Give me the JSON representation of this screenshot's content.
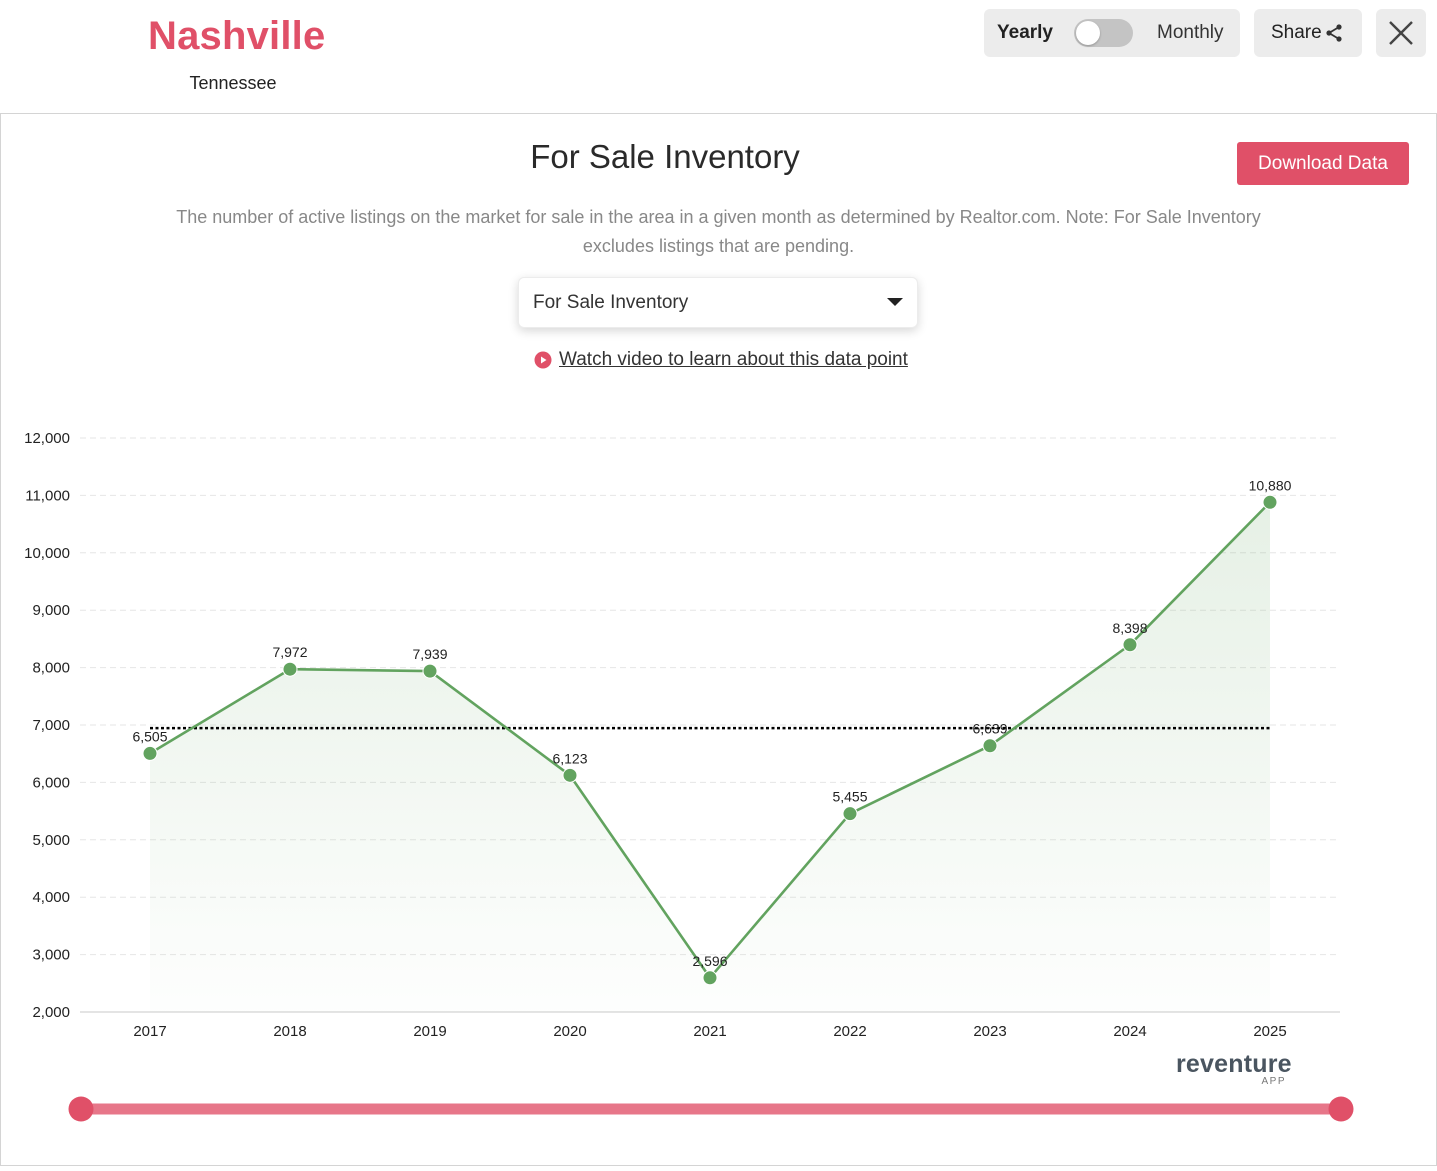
{
  "header": {
    "city": "Nashville",
    "state": "Tennessee",
    "toggle": {
      "left_label": "Yearly",
      "right_label": "Monthly",
      "selected": "Yearly"
    },
    "share_label": "Share"
  },
  "panel": {
    "title": "For Sale Inventory",
    "download_label": "Download Data",
    "description": "The number of active listings on the market for sale in the area in a given month as determined by Realtor.com. Note: For Sale Inventory excludes listings that are pending.",
    "metric_select": {
      "selected": "For Sale Inventory"
    },
    "video_link": "Watch video to learn about this data point"
  },
  "chart_data": {
    "type": "area",
    "title": "",
    "xlabel": "",
    "ylabel": "",
    "categories": [
      "2017",
      "2018",
      "2019",
      "2020",
      "2021",
      "2022",
      "2023",
      "2024",
      "2025"
    ],
    "values": [
      6505,
      7972,
      7939,
      6123,
      2596,
      5455,
      6639,
      8398,
      10880
    ],
    "data_labels": [
      "6,505",
      "7,972",
      "7,939",
      "6,123",
      "2,596",
      "5,455",
      "6,639",
      "8,398",
      "10,880"
    ],
    "ylim": [
      2000,
      12000
    ],
    "yticks": [
      2000,
      3000,
      4000,
      5000,
      6000,
      7000,
      8000,
      9000,
      10000,
      11000,
      12000
    ],
    "ytick_labels": [
      "2,000",
      "3,000",
      "4,000",
      "5,000",
      "6,000",
      "7,000",
      "8,000",
      "9,000",
      "10,000",
      "11,000",
      "12,000"
    ],
    "reference_line": 6945,
    "grid": true,
    "line_color": "#62a35f",
    "fill_color": "#62a35f",
    "reference_line_color": "#000000"
  },
  "range_slider": {
    "color": "#e05068",
    "start": 0,
    "end": 1
  },
  "brand": {
    "name": "reventure",
    "sub": "APP"
  },
  "colors": {
    "accent": "#e05068",
    "toggle_bg": "#ececec"
  },
  "icons": {
    "share": "share-icon",
    "close": "close-icon",
    "dropdown": "caret-down-icon",
    "video": "play-circle-icon"
  }
}
